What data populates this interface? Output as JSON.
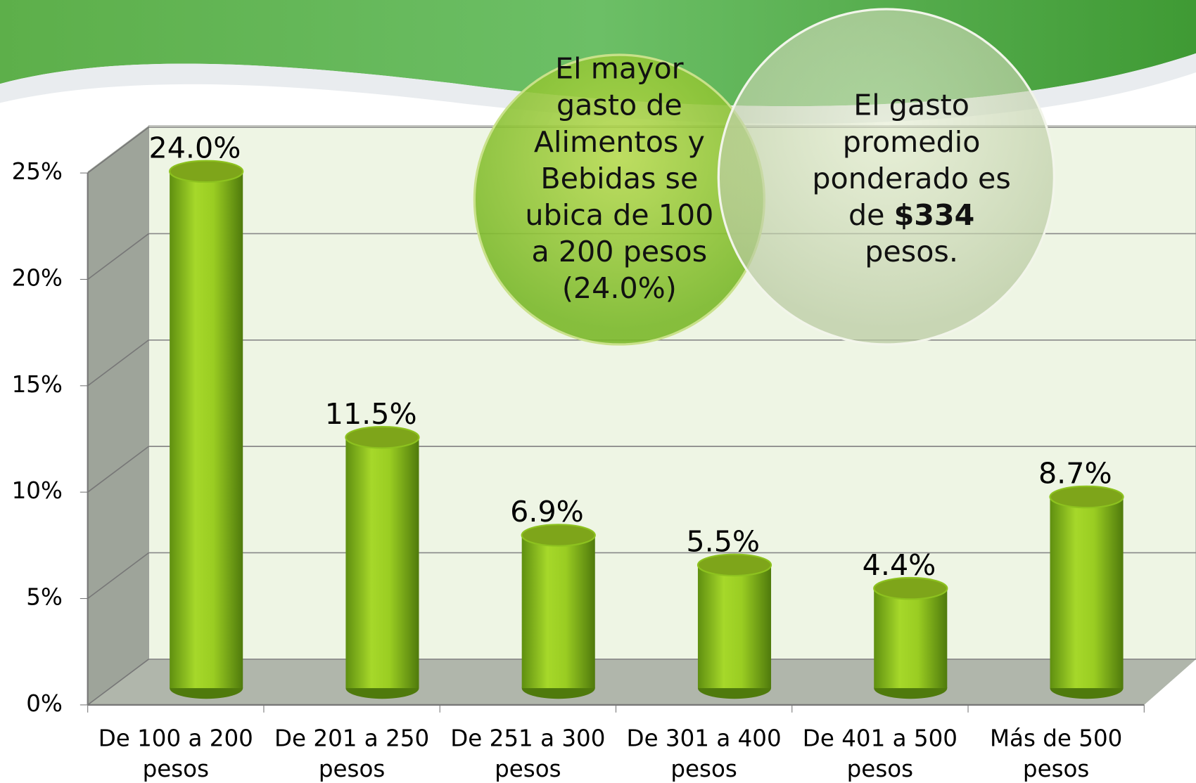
{
  "chart_data": {
    "type": "bar",
    "categories": [
      "De 100 a 200 pesos",
      "De 201 a 250 pesos",
      "De 251 a 300 pesos",
      "De 301 a 400 pesos",
      "De 401 a 500 pesos",
      "Más de 500 pesos"
    ],
    "values": [
      24.0,
      11.5,
      6.9,
      5.5,
      4.4,
      8.7
    ],
    "value_labels": [
      "24.0%",
      "11.5%",
      "6.9%",
      "5.5%",
      "4.4%",
      "8.7%"
    ],
    "color": "#8dc21f",
    "ylim": [
      0,
      25
    ],
    "yticks": [
      {
        "value": 0,
        "label": "0%"
      },
      {
        "value": 5,
        "label": "5%"
      },
      {
        "value": 10,
        "label": "10%"
      },
      {
        "value": 15,
        "label": "15%"
      },
      {
        "value": 20,
        "label": "20%"
      },
      {
        "value": 25,
        "label": "25%"
      }
    ],
    "grid": true,
    "annotations": [
      {
        "text": "El mayor gasto de Alimentos y Bebidas se ubica de 100 a 200 pesos (24.0%)"
      },
      {
        "before": "El gasto promedio ponderado es de",
        "bold": "$334",
        "after": "pesos."
      }
    ]
  }
}
